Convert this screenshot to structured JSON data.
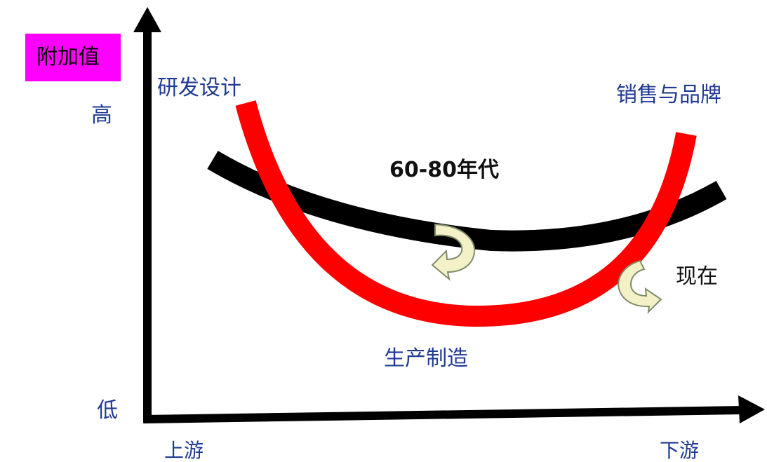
{
  "y_axis": {
    "title": "附加值",
    "high": "高",
    "low": "低"
  },
  "x_axis": {
    "start": "上游",
    "end": "下游"
  },
  "stages": {
    "upstream": "研发设计",
    "downstream": "销售与品牌",
    "bottom": "生产制造"
  },
  "curves": {
    "past": {
      "label": "60-80年代",
      "color": "#000000"
    },
    "now": {
      "label": "现在",
      "color": "#ff0000"
    }
  },
  "colors": {
    "axis": "#000000",
    "arrow_fill": "#f4f1c8",
    "arrow_stroke": "#7f8c6a",
    "label_blue": "#1f3a93"
  }
}
